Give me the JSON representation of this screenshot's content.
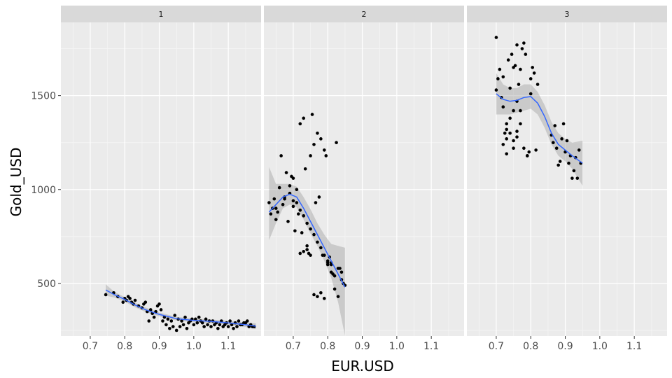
{
  "chart_data": {
    "type": "scatter",
    "xlabel": "EUR.USD",
    "ylabel": "Gold_USD",
    "xlim": [
      0.615,
      1.195
    ],
    "ylim": [
      220,
      1890
    ],
    "x_ticks": [
      0.7,
      0.8,
      0.9,
      1.0,
      1.1
    ],
    "x_tick_labels": [
      "0.7",
      "0.8",
      "0.9",
      "1.0",
      "1.1"
    ],
    "y_ticks": [
      500,
      1000,
      1500
    ],
    "y_tick_labels": [
      "500",
      "1000",
      "1500"
    ],
    "grid": true,
    "facet_variable_labels": [
      "1",
      "2",
      "3"
    ],
    "panels": [
      {
        "facet": "1",
        "points": [
          [
            0.745,
            440
          ],
          [
            0.768,
            450
          ],
          [
            0.78,
            430
          ],
          [
            0.795,
            400
          ],
          [
            0.8,
            420
          ],
          [
            0.805,
            410
          ],
          [
            0.81,
            430
          ],
          [
            0.815,
            420
          ],
          [
            0.82,
            400
          ],
          [
            0.825,
            390
          ],
          [
            0.83,
            410
          ],
          [
            0.84,
            380
          ],
          [
            0.85,
            370
          ],
          [
            0.855,
            390
          ],
          [
            0.86,
            400
          ],
          [
            0.865,
            350
          ],
          [
            0.87,
            300
          ],
          [
            0.875,
            360
          ],
          [
            0.88,
            340
          ],
          [
            0.885,
            320
          ],
          [
            0.89,
            350
          ],
          [
            0.895,
            380
          ],
          [
            0.9,
            390
          ],
          [
            0.905,
            360
          ],
          [
            0.91,
            300
          ],
          [
            0.915,
            320
          ],
          [
            0.92,
            280
          ],
          [
            0.925,
            310
          ],
          [
            0.93,
            260
          ],
          [
            0.935,
            300
          ],
          [
            0.94,
            270
          ],
          [
            0.945,
            330
          ],
          [
            0.95,
            250
          ],
          [
            0.955,
            310
          ],
          [
            0.96,
            270
          ],
          [
            0.965,
            300
          ],
          [
            0.97,
            280
          ],
          [
            0.975,
            320
          ],
          [
            0.98,
            260
          ],
          [
            0.985,
            290
          ],
          [
            0.99,
            300
          ],
          [
            0.995,
            310
          ],
          [
            1.0,
            280
          ],
          [
            1.005,
            310
          ],
          [
            1.01,
            290
          ],
          [
            1.015,
            320
          ],
          [
            1.02,
            300
          ],
          [
            1.025,
            290
          ],
          [
            1.03,
            270
          ],
          [
            1.035,
            310
          ],
          [
            1.04,
            280
          ],
          [
            1.045,
            300
          ],
          [
            1.05,
            270
          ],
          [
            1.055,
            300
          ],
          [
            1.06,
            280
          ],
          [
            1.065,
            290
          ],
          [
            1.07,
            260
          ],
          [
            1.075,
            280
          ],
          [
            1.08,
            300
          ],
          [
            1.085,
            270
          ],
          [
            1.09,
            280
          ],
          [
            1.095,
            290
          ],
          [
            1.1,
            270
          ],
          [
            1.105,
            300
          ],
          [
            1.11,
            280
          ],
          [
            1.115,
            260
          ],
          [
            1.12,
            290
          ],
          [
            1.125,
            270
          ],
          [
            1.13,
            300
          ],
          [
            1.135,
            280
          ],
          [
            1.14,
            280
          ],
          [
            1.145,
            290
          ],
          [
            1.15,
            290
          ],
          [
            1.155,
            300
          ],
          [
            1.16,
            270
          ],
          [
            1.165,
            280
          ],
          [
            1.17,
            270
          ],
          [
            1.175,
            270
          ]
        ],
        "smooth": [
          [
            0.745,
            465
          ],
          [
            0.77,
            440
          ],
          [
            0.8,
            415
          ],
          [
            0.83,
            385
          ],
          [
            0.86,
            360
          ],
          [
            0.9,
            335
          ],
          [
            0.95,
            312
          ],
          [
            1.0,
            303
          ],
          [
            1.05,
            298
          ],
          [
            1.1,
            290
          ],
          [
            1.15,
            280
          ],
          [
            1.18,
            272
          ]
        ],
        "band": [
          [
            0.745,
            435,
            495
          ],
          [
            0.77,
            425,
            455
          ],
          [
            0.8,
            403,
            427
          ],
          [
            0.83,
            373,
            397
          ],
          [
            0.86,
            348,
            372
          ],
          [
            0.9,
            325,
            345
          ],
          [
            0.95,
            302,
            322
          ],
          [
            1.0,
            293,
            313
          ],
          [
            1.05,
            288,
            308
          ],
          [
            1.1,
            280,
            300
          ],
          [
            1.15,
            268,
            292
          ],
          [
            1.18,
            257,
            287
          ]
        ]
      },
      {
        "facet": "2",
        "points": [
          [
            0.63,
            930
          ],
          [
            0.635,
            870
          ],
          [
            0.64,
            900
          ],
          [
            0.645,
            950
          ],
          [
            0.65,
            840
          ],
          [
            0.655,
            880
          ],
          [
            0.66,
            1010
          ],
          [
            0.665,
            1180
          ],
          [
            0.67,
            920
          ],
          [
            0.675,
            950
          ],
          [
            0.68,
            1090
          ],
          [
            0.685,
            830
          ],
          [
            0.69,
            980
          ],
          [
            0.695,
            1070
          ],
          [
            0.7,
            940
          ],
          [
            0.705,
            780
          ],
          [
            0.71,
            930
          ],
          [
            0.715,
            870
          ],
          [
            0.72,
            1350
          ],
          [
            0.725,
            770
          ],
          [
            0.73,
            1380
          ],
          [
            0.735,
            1110
          ],
          [
            0.74,
            680
          ],
          [
            0.745,
            660
          ],
          [
            0.75,
            1180
          ],
          [
            0.755,
            1400
          ],
          [
            0.76,
            1240
          ],
          [
            0.765,
            930
          ],
          [
            0.77,
            1300
          ],
          [
            0.775,
            960
          ],
          [
            0.78,
            1270
          ],
          [
            0.785,
            650
          ],
          [
            0.79,
            1210
          ],
          [
            0.795,
            1180
          ],
          [
            0.8,
            610
          ],
          [
            0.805,
            640
          ],
          [
            0.81,
            610
          ],
          [
            0.815,
            550
          ],
          [
            0.82,
            470
          ],
          [
            0.825,
            1250
          ],
          [
            0.83,
            430
          ],
          [
            0.835,
            580
          ],
          [
            0.84,
            560
          ],
          [
            0.845,
            500
          ],
          [
            0.85,
            490
          ],
          [
            0.72,
            660
          ],
          [
            0.73,
            670
          ],
          [
            0.74,
            700
          ],
          [
            0.75,
            650
          ],
          [
            0.76,
            440
          ],
          [
            0.77,
            430
          ],
          [
            0.78,
            450
          ],
          [
            0.79,
            420
          ],
          [
            0.8,
            600
          ],
          [
            0.81,
            560
          ],
          [
            0.82,
            540
          ],
          [
            0.71,
            1000
          ],
          [
            0.7,
            1060
          ],
          [
            0.69,
            1020
          ],
          [
            0.72,
            890
          ],
          [
            0.73,
            860
          ],
          [
            0.74,
            820
          ],
          [
            0.75,
            790
          ],
          [
            0.76,
            760
          ],
          [
            0.77,
            720
          ],
          [
            0.78,
            690
          ],
          [
            0.79,
            650
          ],
          [
            0.8,
            620
          ],
          [
            0.81,
            600
          ],
          [
            0.83,
            580
          ],
          [
            0.84,
            520
          ],
          [
            0.65,
            900
          ],
          [
            0.675,
            960
          ],
          [
            0.7,
            910
          ]
        ],
        "smooth": [
          [
            0.63,
            880
          ],
          [
            0.65,
            920
          ],
          [
            0.67,
            960
          ],
          [
            0.69,
            975
          ],
          [
            0.71,
            960
          ],
          [
            0.73,
            900
          ],
          [
            0.75,
            830
          ],
          [
            0.77,
            760
          ],
          [
            0.79,
            690
          ],
          [
            0.81,
            620
          ],
          [
            0.83,
            550
          ],
          [
            0.85,
            480
          ]
        ],
        "band": [
          [
            0.63,
            730,
            1120
          ],
          [
            0.65,
            820,
            1030
          ],
          [
            0.67,
            900,
            1030
          ],
          [
            0.69,
            920,
            1030
          ],
          [
            0.71,
            905,
            1015
          ],
          [
            0.73,
            840,
            960
          ],
          [
            0.75,
            765,
            895
          ],
          [
            0.77,
            700,
            820
          ],
          [
            0.79,
            620,
            760
          ],
          [
            0.81,
            530,
            710
          ],
          [
            0.83,
            400,
            700
          ],
          [
            0.85,
            220,
            690
          ]
        ]
      },
      {
        "facet": "3",
        "points": [
          [
            0.7,
            1810
          ],
          [
            0.7,
            1530
          ],
          [
            0.705,
            1590
          ],
          [
            0.71,
            1640
          ],
          [
            0.715,
            1490
          ],
          [
            0.72,
            1440
          ],
          [
            0.725,
            1300
          ],
          [
            0.73,
            1270
          ],
          [
            0.73,
            1350
          ],
          [
            0.735,
            1690
          ],
          [
            0.74,
            1540
          ],
          [
            0.745,
            1720
          ],
          [
            0.75,
            1260
          ],
          [
            0.755,
            1660
          ],
          [
            0.76,
            1770
          ],
          [
            0.765,
            1560
          ],
          [
            0.77,
            1640
          ],
          [
            0.775,
            1750
          ],
          [
            0.78,
            1780
          ],
          [
            0.785,
            1720
          ],
          [
            0.79,
            1180
          ],
          [
            0.795,
            1200
          ],
          [
            0.8,
            1590
          ],
          [
            0.805,
            1650
          ],
          [
            0.81,
            1620
          ],
          [
            0.815,
            1210
          ],
          [
            0.72,
            1240
          ],
          [
            0.73,
            1190
          ],
          [
            0.74,
            1300
          ],
          [
            0.75,
            1420
          ],
          [
            0.76,
            1310
          ],
          [
            0.77,
            1350
          ],
          [
            0.78,
            1220
          ],
          [
            0.79,
            1180
          ],
          [
            0.8,
            1510
          ],
          [
            0.82,
            1560
          ],
          [
            0.86,
            1290
          ],
          [
            0.865,
            1250
          ],
          [
            0.87,
            1340
          ],
          [
            0.875,
            1220
          ],
          [
            0.88,
            1130
          ],
          [
            0.885,
            1150
          ],
          [
            0.89,
            1270
          ],
          [
            0.895,
            1350
          ],
          [
            0.9,
            1200
          ],
          [
            0.905,
            1260
          ],
          [
            0.91,
            1140
          ],
          [
            0.915,
            1180
          ],
          [
            0.92,
            1060
          ],
          [
            0.925,
            1100
          ],
          [
            0.93,
            1170
          ],
          [
            0.935,
            1060
          ],
          [
            0.94,
            1210
          ],
          [
            0.945,
            1140
          ],
          [
            0.72,
            1600
          ],
          [
            0.75,
            1650
          ],
          [
            0.76,
            1470
          ],
          [
            0.77,
            1420
          ],
          [
            0.74,
            1380
          ],
          [
            0.73,
            1320
          ],
          [
            0.75,
            1220
          ],
          [
            0.76,
            1280
          ]
        ],
        "smooth": [
          [
            0.7,
            1510
          ],
          [
            0.72,
            1480
          ],
          [
            0.74,
            1470
          ],
          [
            0.76,
            1475
          ],
          [
            0.78,
            1490
          ],
          [
            0.8,
            1495
          ],
          [
            0.82,
            1460
          ],
          [
            0.84,
            1390
          ],
          [
            0.86,
            1300
          ],
          [
            0.88,
            1240
          ],
          [
            0.9,
            1210
          ],
          [
            0.92,
            1180
          ],
          [
            0.95,
            1140
          ]
        ],
        "band": [
          [
            0.7,
            1400,
            1620
          ],
          [
            0.72,
            1400,
            1560
          ],
          [
            0.74,
            1400,
            1540
          ],
          [
            0.76,
            1410,
            1540
          ],
          [
            0.78,
            1420,
            1560
          ],
          [
            0.8,
            1430,
            1560
          ],
          [
            0.82,
            1400,
            1520
          ],
          [
            0.84,
            1330,
            1450
          ],
          [
            0.86,
            1240,
            1360
          ],
          [
            0.88,
            1180,
            1300
          ],
          [
            0.9,
            1150,
            1270
          ],
          [
            0.92,
            1110,
            1250
          ],
          [
            0.95,
            1020,
            1260
          ]
        ]
      }
    ]
  },
  "colors": {
    "panel_bg": "#ebebeb",
    "strip_bg": "#d9d9d9",
    "grid_major": "#ffffff",
    "point": "#000000",
    "smooth_line": "#3366ff",
    "band_fill": "#999999"
  }
}
